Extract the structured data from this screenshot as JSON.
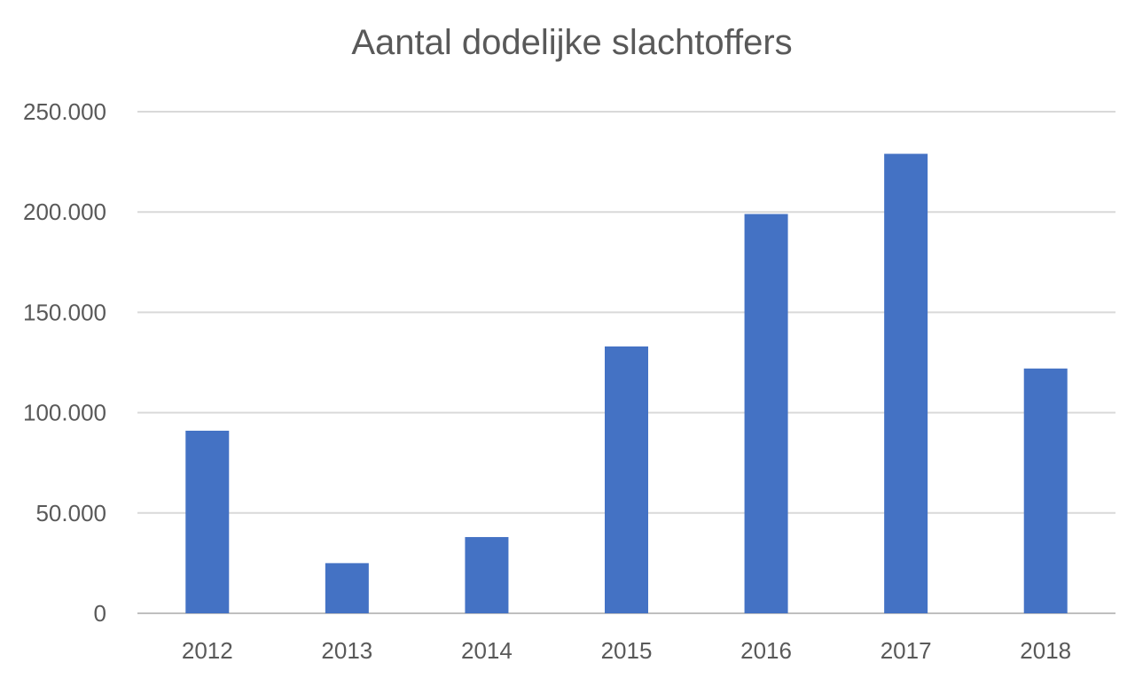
{
  "chart_data": {
    "type": "bar",
    "title": "Aantal dodelijke slachtoffers",
    "xlabel": "",
    "ylabel": "",
    "categories": [
      "2012",
      "2013",
      "2014",
      "2015",
      "2016",
      "2017",
      "2018"
    ],
    "series": [
      {
        "values": [
          91000,
          25000,
          38000,
          133000,
          199000,
          229000,
          122000
        ]
      }
    ],
    "ylim": [
      0,
      250000
    ],
    "yticks": [
      0,
      50000,
      100000,
      150000,
      200000,
      250000
    ],
    "ytick_labels": [
      "0",
      "50.000",
      "100.000",
      "150.000",
      "200.000",
      "250.000"
    ],
    "grid": true,
    "legend": "none",
    "colors": {
      "bar": "#4472C4",
      "grid": "#D9D9D9",
      "text": "#595959"
    }
  }
}
